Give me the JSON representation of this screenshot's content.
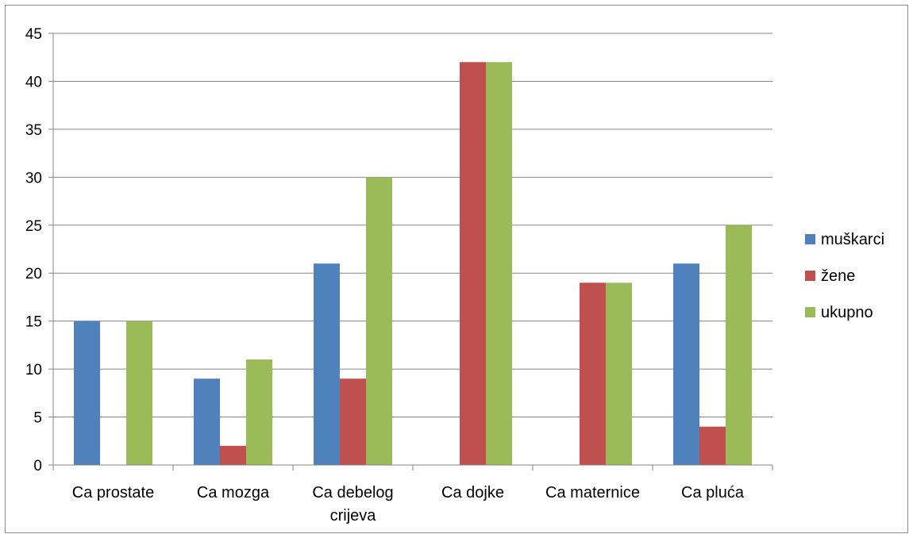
{
  "chart_data": {
    "type": "bar",
    "categories": [
      [
        "Ca prostate"
      ],
      [
        "Ca mozga"
      ],
      [
        "Ca debelog",
        "crijeva"
      ],
      [
        "Ca dojke"
      ],
      [
        "Ca maternice"
      ],
      [
        "Ca pluća"
      ]
    ],
    "series": [
      {
        "name": "muškarci",
        "color": "#4f81bd",
        "values": [
          15,
          9,
          21,
          null,
          null,
          21
        ]
      },
      {
        "name": "žene",
        "color": "#c0504d",
        "values": [
          null,
          2,
          9,
          42,
          19,
          4
        ]
      },
      {
        "name": "ukupno",
        "color": "#9bbb59",
        "values": [
          15,
          11,
          30,
          42,
          19,
          25
        ]
      }
    ],
    "ylim": [
      0,
      45
    ],
    "yticks": [
      0,
      5,
      10,
      15,
      20,
      25,
      30,
      35,
      40,
      45
    ],
    "grid": true,
    "legend_position": "right",
    "title": "",
    "xlabel": "",
    "ylabel": ""
  }
}
